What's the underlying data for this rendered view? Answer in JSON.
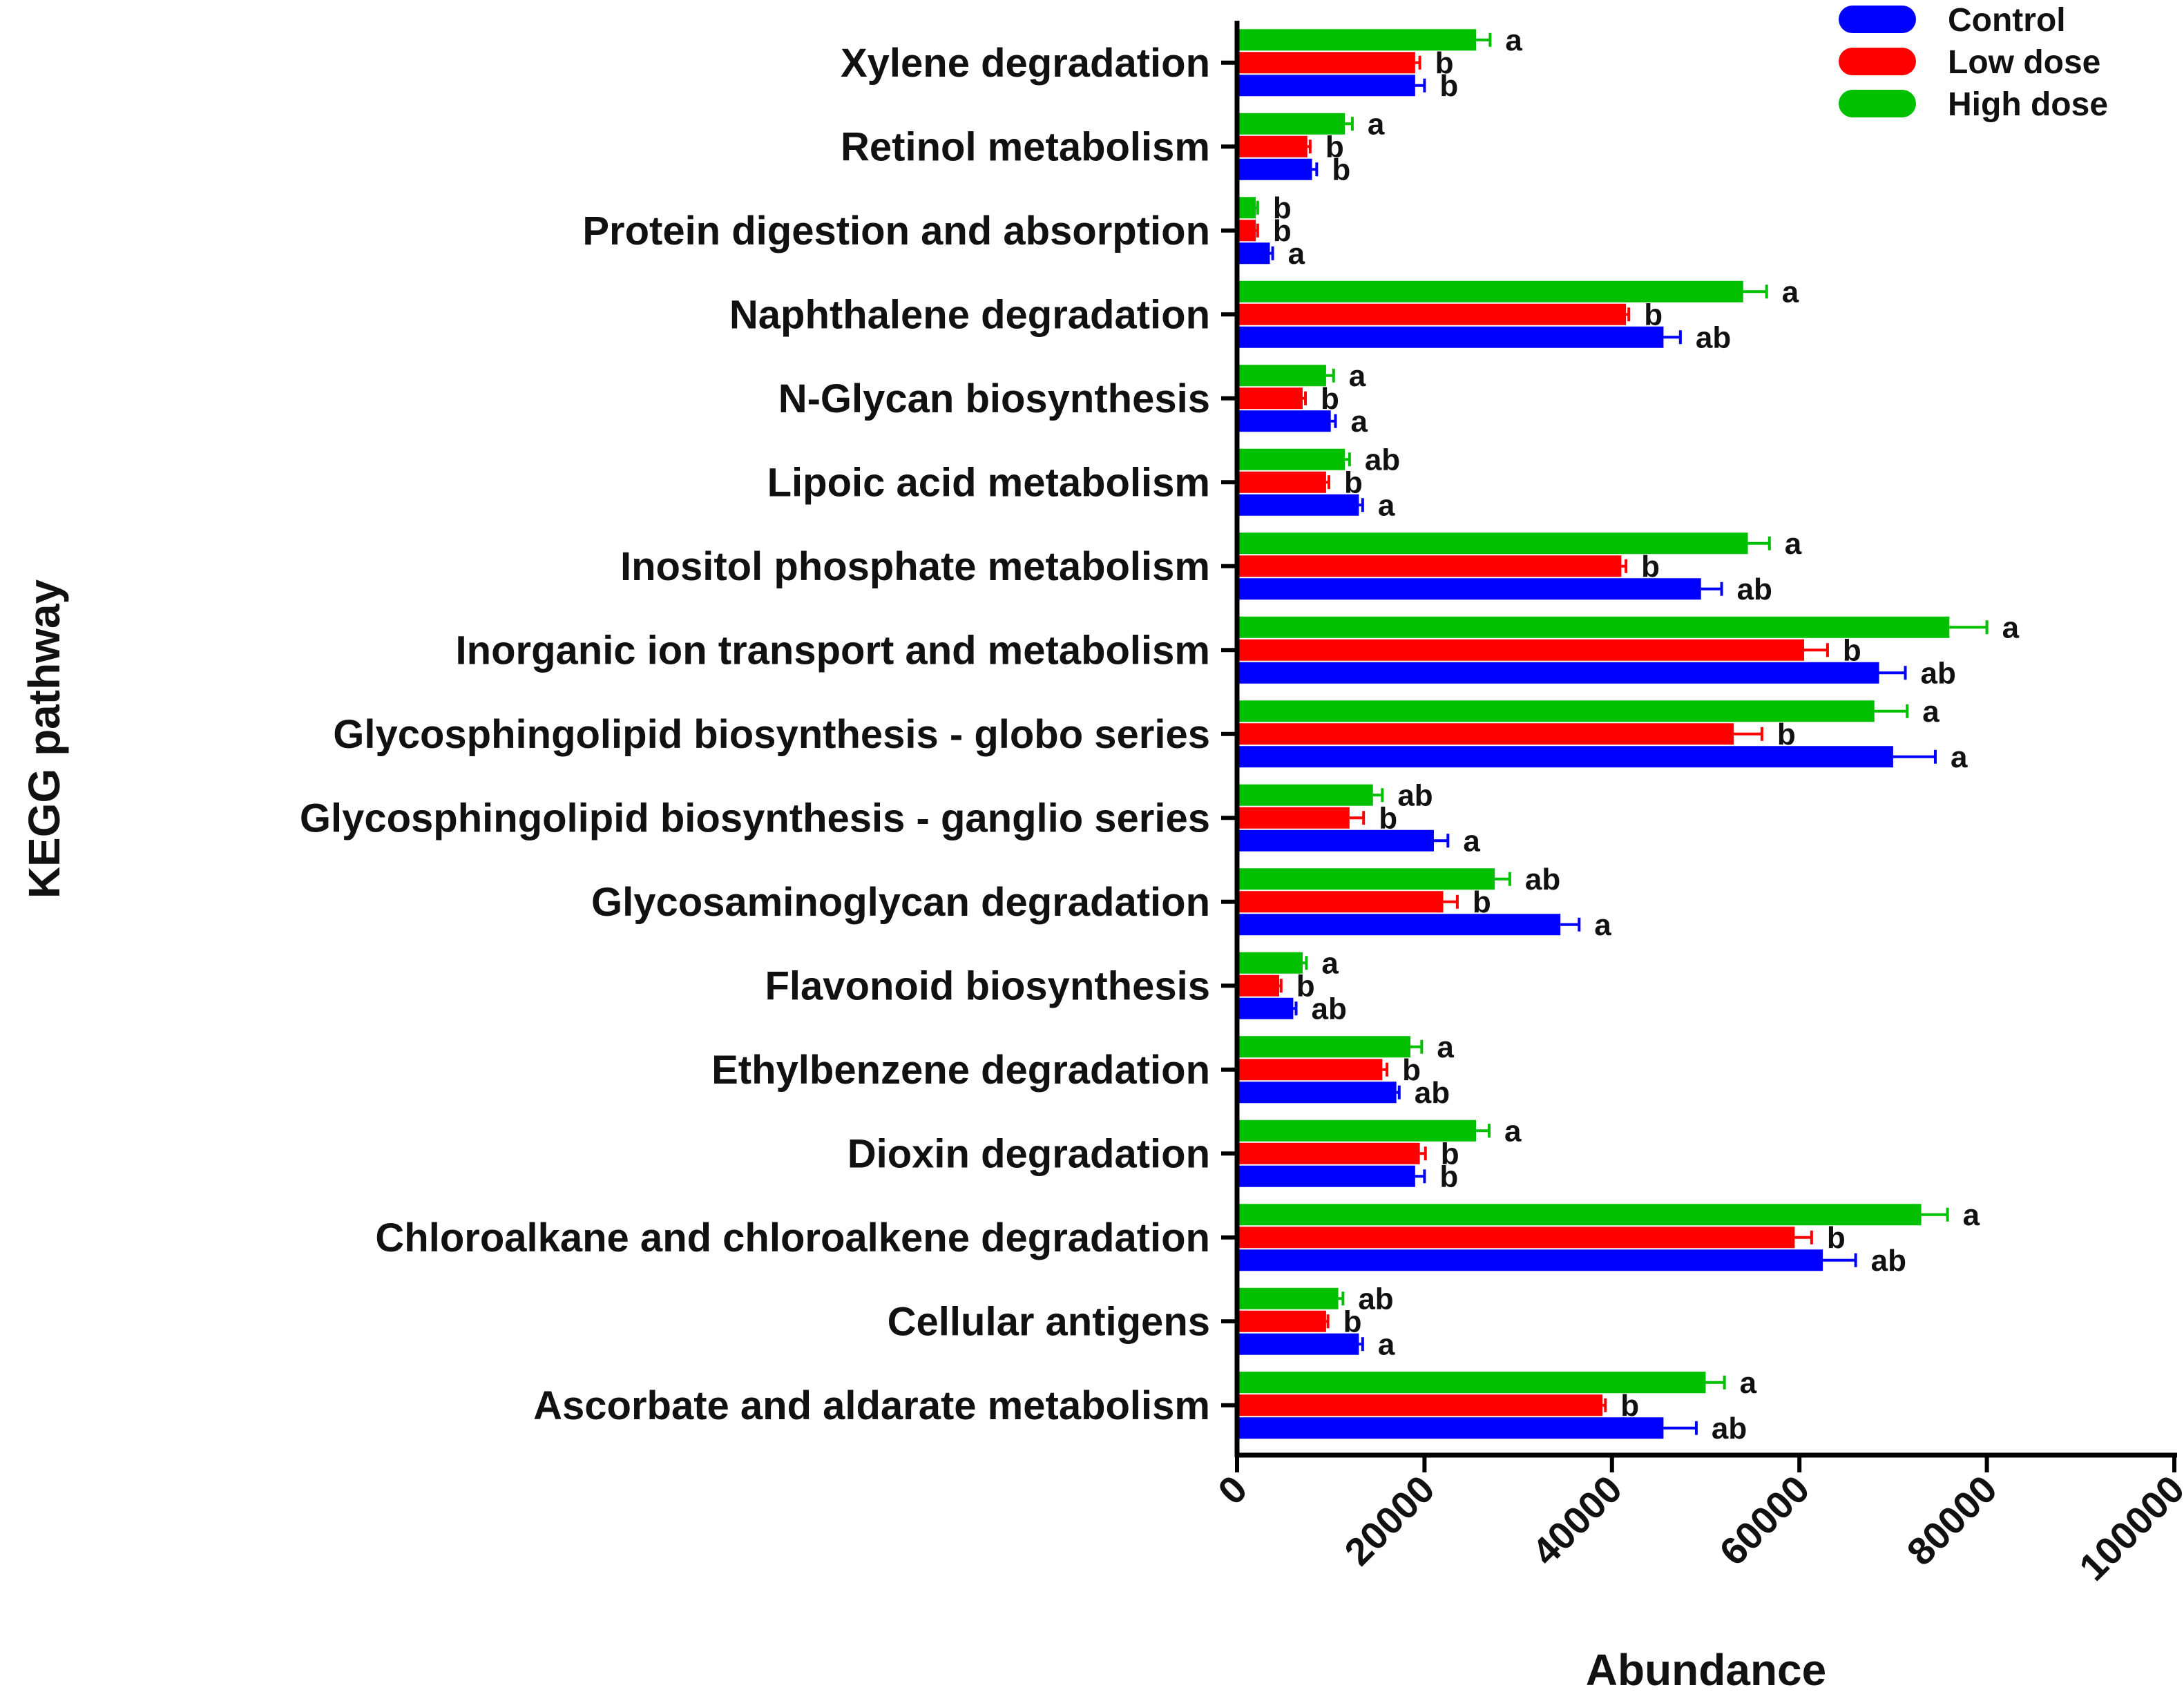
{
  "chart_data": {
    "type": "bar",
    "orientation": "horizontal",
    "xlabel": "Abundance",
    "ylabel": "KEGG pathway",
    "xlim": [
      0,
      100000
    ],
    "xticks": [
      "0",
      "20000",
      "40000",
      "60000",
      "80000",
      "100000"
    ],
    "grid": false,
    "legend_position": "top-right",
    "categories": [
      "Xylene degradation",
      "Retinol metabolism",
      "Protein digestion and absorption",
      "Naphthalene degradation",
      "N-Glycan biosynthesis",
      "Lipoic acid metabolism",
      "Inositol phosphate metabolism",
      "Inorganic ion transport and metabolism",
      "Glycosphingolipid biosynthesis - globo series",
      "Glycosphingolipid biosynthesis - ganglio series",
      "Glycosaminoglycan degradation",
      "Flavonoid biosynthesis",
      "Ethylbenzene degradation",
      "Dioxin degradation",
      "Chloroalkane and chloroalkene degradation",
      "Cellular antigens",
      "Ascorbate and aldarate metabolism"
    ],
    "series": [
      {
        "name": "High dose",
        "color": "#00c000",
        "values": [
          25500,
          11500,
          2000,
          54000,
          9500,
          11500,
          54500,
          76000,
          68000,
          14500,
          27500,
          7000,
          18500,
          25500,
          73000,
          10800,
          50000
        ],
        "errors": [
          1500,
          800,
          200,
          2500,
          800,
          500,
          2300,
          4000,
          3500,
          1000,
          1600,
          400,
          1200,
          1400,
          2800,
          500,
          2000
        ],
        "sig": [
          "a",
          "a",
          "b",
          "a",
          "a",
          "ab",
          "a",
          "a",
          "a",
          "ab",
          "ab",
          "a",
          "a",
          "a",
          "a",
          "ab",
          "a"
        ]
      },
      {
        "name": "Low dose",
        "color": "#ff0000",
        "values": [
          19000,
          7500,
          2000,
          41500,
          7000,
          9500,
          41000,
          60500,
          53000,
          12000,
          22000,
          4500,
          15500,
          19500,
          59500,
          9500,
          39000
        ],
        "errors": [
          500,
          300,
          200,
          300,
          300,
          300,
          500,
          2500,
          3000,
          1500,
          1500,
          200,
          500,
          600,
          1800,
          200,
          300
        ],
        "sig": [
          "b",
          "b",
          "b",
          "b",
          "b",
          "b",
          "b",
          "b",
          "b",
          "b",
          "b",
          "b",
          "b",
          "b",
          "b",
          "b",
          "b"
        ]
      },
      {
        "name": "Control",
        "color": "#0000ff",
        "values": [
          19000,
          8000,
          3500,
          45500,
          10000,
          13000,
          49500,
          68500,
          70000,
          21000,
          34500,
          6000,
          17000,
          19000,
          62500,
          13000,
          45500
        ],
        "errors": [
          1000,
          500,
          300,
          1800,
          500,
          400,
          2200,
          2800,
          4500,
          1500,
          2000,
          300,
          300,
          1000,
          3500,
          400,
          3500
        ],
        "sig": [
          "b",
          "b",
          "a",
          "ab",
          "a",
          "a",
          "ab",
          "ab",
          "a",
          "a",
          "a",
          "ab",
          "ab",
          "b",
          "ab",
          "a",
          "ab"
        ]
      }
    ]
  }
}
